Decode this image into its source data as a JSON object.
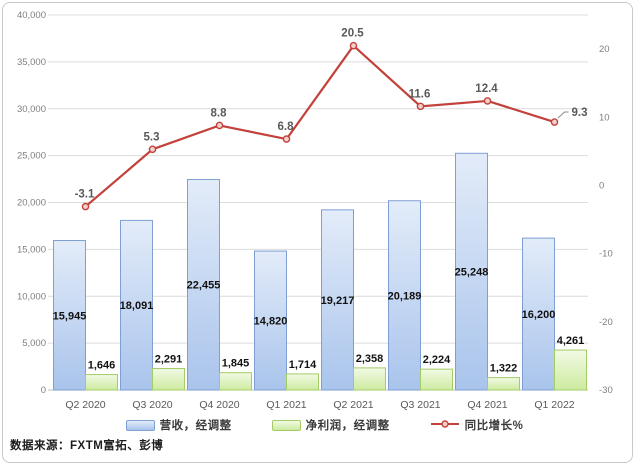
{
  "source_note": "数据来源：FXTM富拓、彭博",
  "chart_data": {
    "type": "bar",
    "subtype": "combo bar + line, dual axis",
    "title": "",
    "xlabel": "",
    "ylabel": "",
    "categories": [
      "Q2 2020",
      "Q3 2020",
      "Q4 2020",
      "Q1 2021",
      "Q2 2021",
      "Q3 2021",
      "Q4 2021",
      "Q1 2022"
    ],
    "series": [
      {
        "name": "营收，经调整",
        "type": "bar",
        "axis": "left",
        "values": [
          15945,
          18091,
          22455,
          14820,
          19217,
          20189,
          25248,
          16200
        ],
        "fill_top": "#E3ECF9",
        "fill_bottom": "#A9C4EC",
        "border": "#7F9FD4"
      },
      {
        "name": "净利润，经调整",
        "type": "bar",
        "axis": "left",
        "values": [
          1646,
          2291,
          1845,
          1714,
          2358,
          2224,
          1322,
          4261
        ],
        "fill_top": "#F2FAE5",
        "fill_bottom": "#CDEBA0",
        "border": "#A3CC66"
      },
      {
        "name": "同比增长%",
        "type": "line",
        "axis": "right",
        "values": [
          -3.1,
          5.3,
          8.8,
          6.8,
          20.5,
          11.6,
          12.4,
          9.3
        ],
        "color": "#C2423B",
        "marker_fill": "#F2CFCB"
      }
    ],
    "left_axis": {
      "min": 0,
      "max": 40000,
      "step": 5000,
      "tick_labels": [
        "0",
        "5,000",
        "10,000",
        "15,000",
        "20,000",
        "25,000",
        "30,000",
        "35,000",
        "40,000"
      ]
    },
    "right_axis": {
      "min": -30,
      "max": 25,
      "tick_step": 10,
      "tick_labels": [
        "-30",
        "-20",
        "-10",
        "0",
        "10",
        "20"
      ]
    },
    "grid": "horizontal gridlines on",
    "legend_position": "bottom",
    "styles": {
      "gridline": "#DCDCDC",
      "axis_line": "#BFBFBF",
      "tick_text": "#7F7F7F",
      "category_text": "#595959",
      "line_label_text": "#595959",
      "bar_label_text": "#111111",
      "leader_line": "#8a8a8a",
      "frame_border": "#C9C9C9"
    }
  }
}
